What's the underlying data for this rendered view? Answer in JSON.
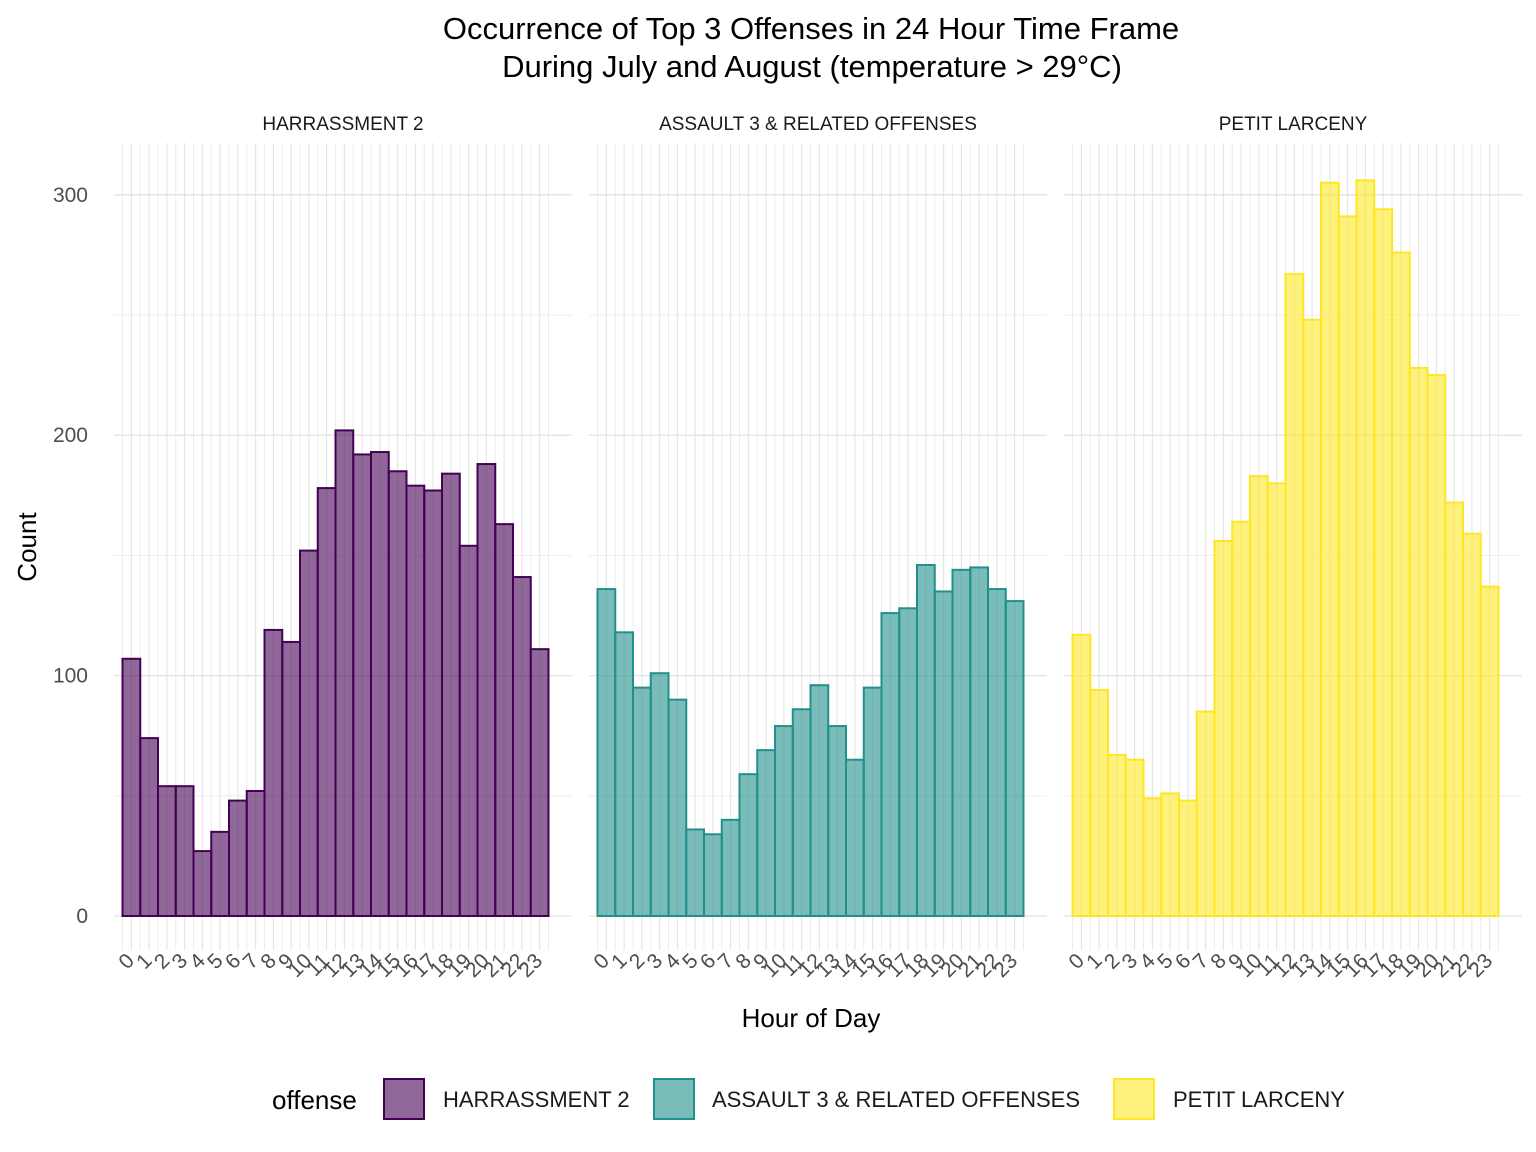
{
  "chart_data": {
    "type": "bar",
    "title": "Occurrence of Top 3 Offenses in 24 Hour Time Frame",
    "subtitle": "During July and August (temperature > 29°C)",
    "xlabel": "Hour of Day",
    "ylabel": "Count",
    "ylim": [
      0,
      320
    ],
    "y_ticks": [
      "0",
      "100",
      "200",
      "300"
    ],
    "grid": true,
    "categories": [
      "0",
      "1",
      "2",
      "3",
      "4",
      "5",
      "6",
      "7",
      "8",
      "9",
      "10",
      "11",
      "12",
      "13",
      "14",
      "15",
      "16",
      "17",
      "18",
      "19",
      "20",
      "21",
      "22",
      "23"
    ],
    "series": [
      {
        "name": "HARRASSMENT 2",
        "fill": "#440154",
        "outline": "#440154",
        "values": [
          107,
          74,
          54,
          54,
          27,
          35,
          48,
          52,
          119,
          114,
          152,
          178,
          202,
          192,
          193,
          185,
          179,
          177,
          184,
          154,
          188,
          163,
          141,
          111
        ]
      },
      {
        "name": "ASSAULT 3 & RELATED OFFENSES",
        "fill": "#21908C",
        "outline": "#21908C",
        "values": [
          136,
          118,
          95,
          101,
          90,
          36,
          34,
          40,
          59,
          69,
          79,
          86,
          96,
          79,
          65,
          95,
          126,
          128,
          146,
          135,
          144,
          145,
          136,
          131
        ]
      },
      {
        "name": "PETIT LARCENY",
        "fill": "#FDE725",
        "outline": "#FDE725",
        "values": [
          117,
          94,
          67,
          65,
          49,
          51,
          48,
          85,
          156,
          164,
          183,
          180,
          267,
          248,
          305,
          291,
          306,
          294,
          276,
          228,
          225,
          172,
          159,
          137
        ]
      }
    ]
  },
  "legend": {
    "title": "offense"
  }
}
